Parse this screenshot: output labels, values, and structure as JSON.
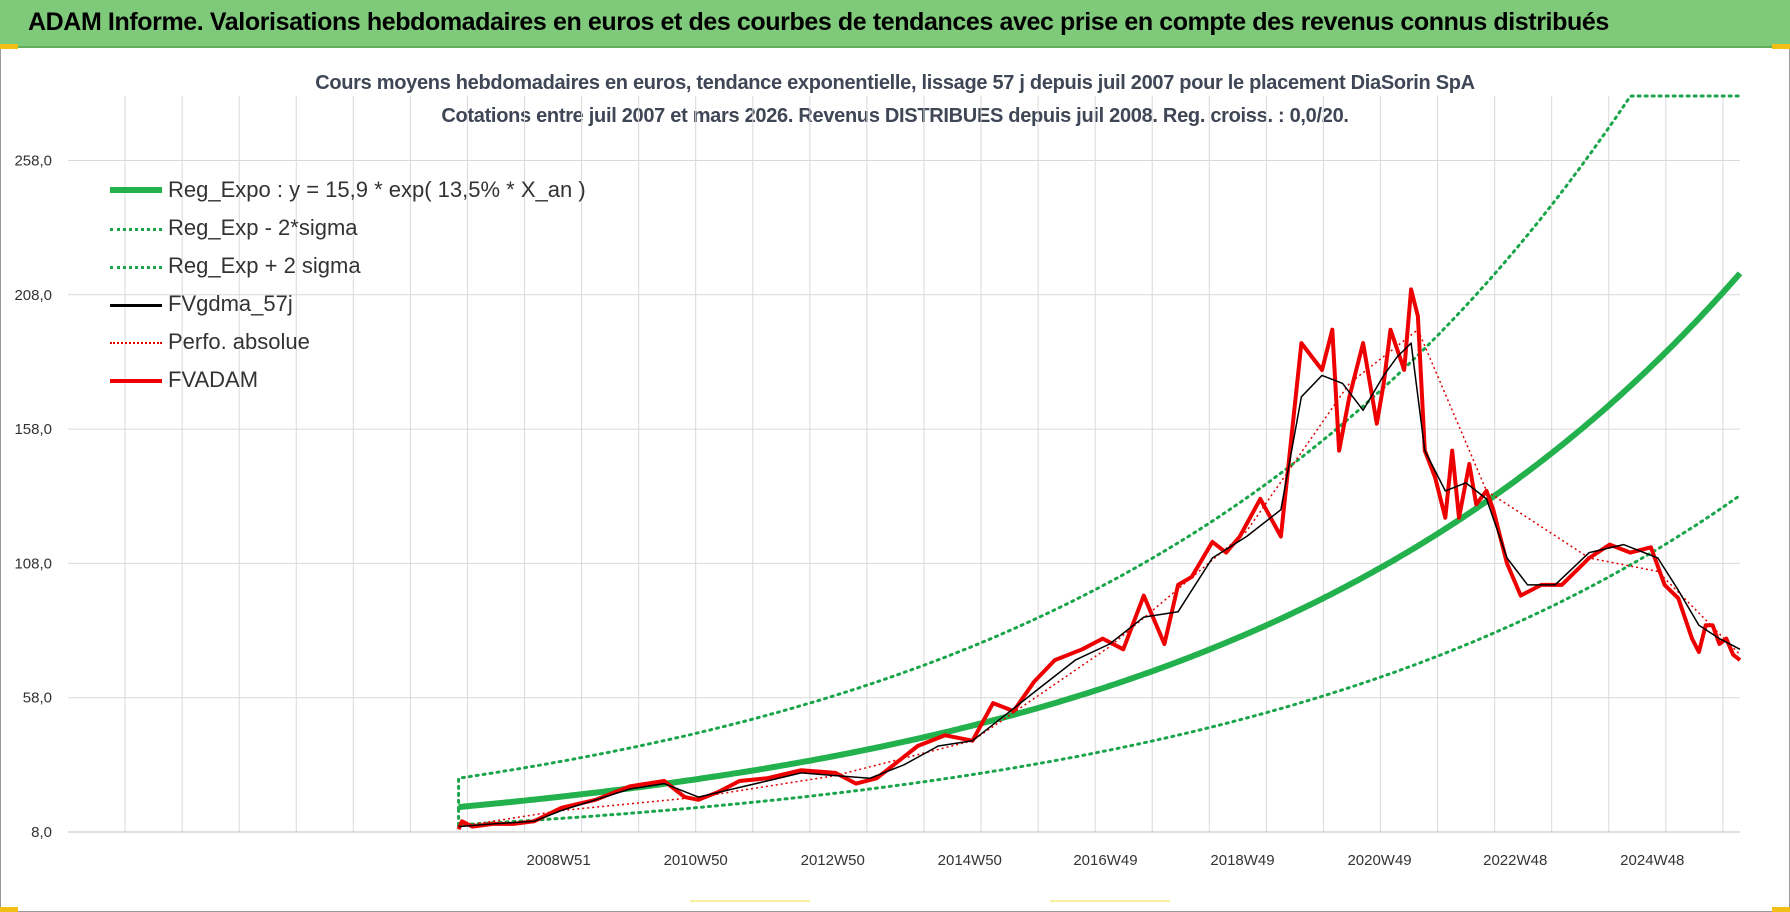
{
  "header": {
    "title": "ADAM Informe. Valorisations hebdomadaires en euros et des courbes de tendances avec prise en compte des revenus connus distribués"
  },
  "colors": {
    "header_bg": "#7fc97a",
    "reg_expo": "#22b14c",
    "sigma": "#1aa54a",
    "fvgdma": "#000000",
    "perfo": "#e00000",
    "fvadam": "#ee0000",
    "grid": "#d9d9d9"
  },
  "chart_data": {
    "type": "line",
    "title": "Cours moyens hebdomadaires en euros, tendance exponentielle, lissage 57 j depuis juil 2007 pour le placement DiaSorin SpA",
    "subtitle": "Cotations entre juil 2007 et mars 2026. Revenus DISTRIBUES depuis juil 2008. Reg. croiss. : 0,0/20.",
    "ylim": [
      8,
      282
    ],
    "y_ticks": [
      8,
      58,
      108,
      158,
      208,
      258
    ],
    "y_tick_labels": [
      "8,0",
      "58,0",
      "108,0",
      "158,0",
      "208,0",
      "258,0"
    ],
    "x_range": [
      2007.5,
      2026.2
    ],
    "x_axis_start": 2001.8,
    "x_ticks": [
      2008.96,
      2010.96,
      2012.96,
      2014.96,
      2016.94,
      2018.94,
      2020.94,
      2022.92,
      2024.92
    ],
    "x_tick_labels": [
      "2008W51",
      "2010W50",
      "2012W50",
      "2014W50",
      "2016W49",
      "2018W49",
      "2020W49",
      "2022W48",
      "2024W48"
    ],
    "legend": [
      {
        "key": "reg_expo",
        "label": "Reg_Expo : y = 15,9 * exp( 13,5% *  X_an )",
        "style": "solid-thick"
      },
      {
        "key": "reg_minus",
        "label": "Reg_Exp - 2*sigma",
        "style": "dotted"
      },
      {
        "key": "reg_plus",
        "label": "Reg_Exp + 2 sigma",
        "style": "dotted"
      },
      {
        "key": "fvgdma",
        "label": "FVgdma_57j",
        "style": "solid-thin"
      },
      {
        "key": "perfo",
        "label": "Perfo. absolue",
        "style": "dotted-red"
      },
      {
        "key": "fvadam",
        "label": "FVADAM",
        "style": "solid-red"
      }
    ],
    "regression": {
      "a": 15.9,
      "rate": 0.135,
      "x0": 2007.5,
      "sigma_factor": 1.62,
      "cap": 282
    },
    "series": [
      {
        "name": "FVADAM",
        "x": [
          2007.5,
          2007.55,
          2007.7,
          2008.0,
          2008.3,
          2008.6,
          2009.0,
          2009.5,
          2010.0,
          2010.5,
          2010.8,
          2011.0,
          2011.3,
          2011.6,
          2012.0,
          2012.5,
          2013.0,
          2013.3,
          2013.6,
          2013.9,
          2014.2,
          2014.6,
          2015.0,
          2015.3,
          2015.6,
          2015.9,
          2016.2,
          2016.6,
          2016.9,
          2017.2,
          2017.5,
          2017.8,
          2018.0,
          2018.2,
          2018.5,
          2018.7,
          2018.9,
          2019.2,
          2019.5,
          2019.8,
          2020.1,
          2020.25,
          2020.35,
          2020.5,
          2020.7,
          2020.9,
          2021.0,
          2021.1,
          2021.3,
          2021.4,
          2021.5,
          2021.6,
          2021.75,
          2021.9,
          2022.0,
          2022.1,
          2022.25,
          2022.35,
          2022.5,
          2022.6,
          2022.8,
          2023.0,
          2023.3,
          2023.6,
          2024.0,
          2024.3,
          2024.6,
          2024.9,
          2025.1,
          2025.3,
          2025.5,
          2025.6,
          2025.7,
          2025.8,
          2025.9,
          2026.0,
          2026.1,
          2026.2
        ],
        "values": [
          9,
          12,
          10,
          11,
          11,
          12,
          17,
          20,
          25,
          27,
          21,
          20,
          23,
          27,
          28,
          31,
          30,
          26,
          28,
          34,
          40,
          44,
          42,
          56,
          53,
          64,
          72,
          76,
          80,
          76,
          96,
          78,
          100,
          103,
          116,
          112,
          118,
          132,
          118,
          190,
          180,
          195,
          150,
          170,
          190,
          160,
          175,
          195,
          180,
          210,
          200,
          150,
          140,
          125,
          150,
          125,
          145,
          130,
          135,
          128,
          108,
          96,
          100,
          100,
          110,
          115,
          112,
          114,
          100,
          95,
          80,
          75,
          85,
          85,
          78,
          80,
          74,
          72
        ]
      },
      {
        "name": "FVgdma_57j",
        "x": [
          2007.5,
          2008.0,
          2008.6,
          2009.0,
          2009.5,
          2010.0,
          2010.5,
          2011.0,
          2011.5,
          2012.0,
          2012.5,
          2013.0,
          2013.5,
          2014.0,
          2014.5,
          2015.0,
          2015.5,
          2016.0,
          2016.5,
          2017.0,
          2017.5,
          2018.0,
          2018.5,
          2019.0,
          2019.5,
          2019.8,
          2020.1,
          2020.4,
          2020.7,
          2021.0,
          2021.2,
          2021.4,
          2021.6,
          2021.9,
          2022.2,
          2022.5,
          2022.8,
          2023.1,
          2023.5,
          2024.0,
          2024.5,
          2025.0,
          2025.3,
          2025.6,
          2025.9,
          2026.2
        ],
        "values": [
          10,
          11,
          12,
          16,
          20,
          24,
          26,
          21,
          24,
          27,
          30,
          29,
          28,
          33,
          40,
          42,
          52,
          62,
          72,
          78,
          88,
          90,
          110,
          118,
          128,
          170,
          178,
          175,
          165,
          178,
          185,
          190,
          150,
          135,
          138,
          132,
          110,
          100,
          100,
          112,
          115,
          110,
          98,
          85,
          80,
          76
        ]
      },
      {
        "name": "Perfo. absolue",
        "x": [
          2007.5,
          2009.0,
          2011.0,
          2013.0,
          2015.0,
          2017.0,
          2019.0,
          2020.5,
          2021.5,
          2022.5,
          2024.0,
          2025.0,
          2026.2
        ],
        "values": [
          10,
          16,
          21,
          29,
          42,
          77,
          120,
          175,
          195,
          135,
          110,
          105,
          74
        ]
      }
    ]
  }
}
